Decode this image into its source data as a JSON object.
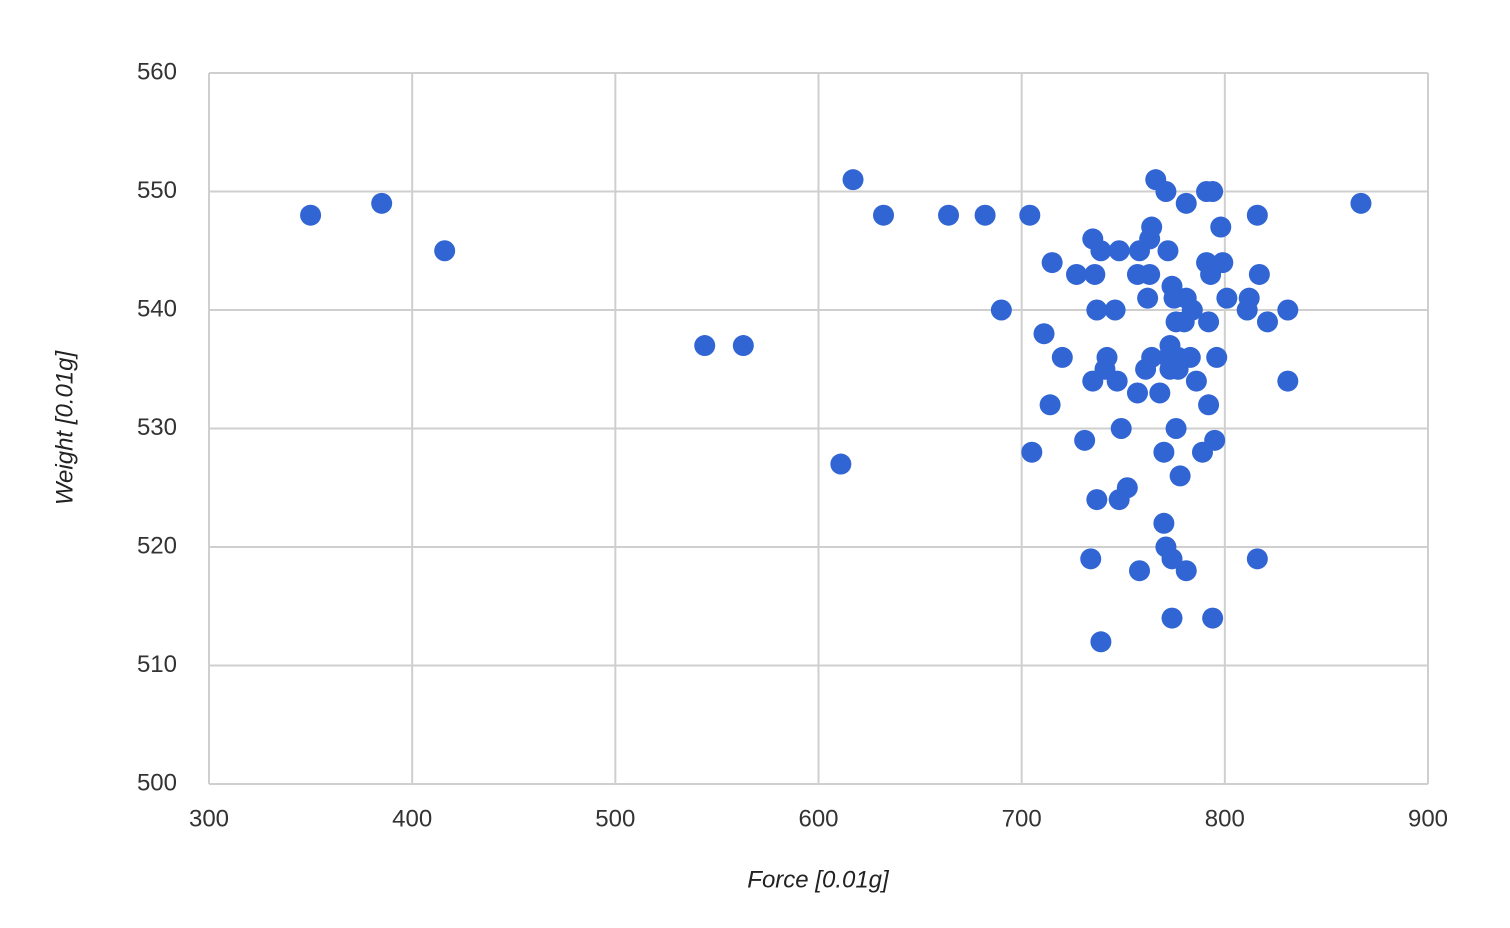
{
  "chart_data": {
    "type": "scatter",
    "x_label": "Force [0.01g]",
    "y_label": "Weight [0.01g]",
    "color": "#3265d4",
    "grid": true,
    "xlim": [
      300,
      900
    ],
    "xticks": [
      300,
      400,
      500,
      600,
      700,
      800,
      900
    ],
    "ylim": [
      500,
      560
    ],
    "yticks": [
      500,
      510,
      520,
      530,
      540,
      550,
      560
    ],
    "x": [
      350,
      385,
      416,
      544,
      563,
      611,
      617,
      632,
      664,
      682,
      704,
      690,
      711,
      715,
      714,
      720,
      705,
      727,
      735,
      736,
      737,
      739,
      735,
      731,
      737,
      734,
      739,
      742,
      741,
      746,
      748,
      747,
      749,
      752,
      748,
      757,
      758,
      757,
      763,
      762,
      761,
      764,
      764,
      763,
      766,
      771,
      772,
      768,
      770,
      770,
      771,
      758,
      773,
      772,
      773,
      774,
      775,
      776,
      776,
      774,
      774,
      778,
      777,
      777,
      781,
      781,
      781,
      780,
      783,
      784,
      786,
      789,
      791,
      794,
      791,
      793,
      792,
      792,
      795,
      794,
      796,
      798,
      799,
      801,
      812,
      811,
      816,
      817,
      821,
      816,
      831,
      831,
      867
    ],
    "values": [
      548,
      549,
      545,
      537,
      537,
      527,
      551,
      548,
      548,
      548,
      548,
      540,
      538,
      544,
      532,
      536,
      528,
      543,
      546,
      543,
      540,
      545,
      534,
      529,
      524,
      519,
      512,
      536,
      535,
      540,
      545,
      534,
      530,
      525,
      524,
      533,
      545,
      543,
      543,
      541,
      535,
      536,
      547,
      546,
      551,
      550,
      545,
      533,
      528,
      522,
      520,
      518,
      537,
      536,
      535,
      542,
      541,
      539,
      530,
      519,
      514,
      526,
      536,
      535,
      518,
      549,
      541,
      539,
      536,
      540,
      534,
      528,
      550,
      550,
      544,
      543,
      539,
      532,
      529,
      514,
      536,
      547,
      544,
      541,
      541,
      540,
      548,
      543,
      539,
      519,
      540,
      534,
      549
    ]
  }
}
